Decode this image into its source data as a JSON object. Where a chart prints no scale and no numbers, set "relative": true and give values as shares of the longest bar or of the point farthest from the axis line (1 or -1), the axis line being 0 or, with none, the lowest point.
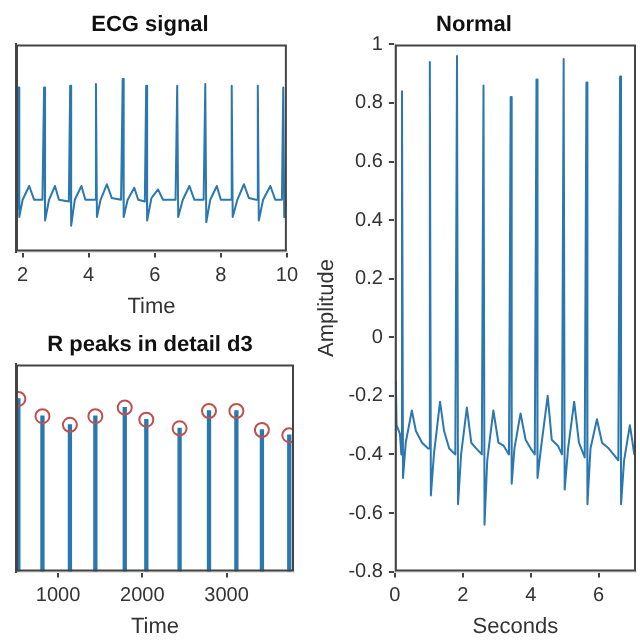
{
  "chart_data": [
    {
      "type": "line",
      "title": "ECG signal",
      "xlabel": "Time",
      "relative": true,
      "tick_labels": "x",
      "xlim": [
        1.8,
        10
      ],
      "xticks": [
        2,
        4,
        6,
        8,
        10
      ],
      "series": [
        {
          "color": "#2b78b0",
          "x": [
            1.8,
            1.86,
            1.88,
            1.9,
            2.0,
            2.2,
            2.35,
            2.6,
            2.65,
            2.68,
            2.8,
            2.98,
            3.1,
            3.4,
            3.44,
            3.47,
            3.58,
            3.78,
            3.9,
            4.18,
            4.22,
            4.25,
            4.36,
            4.55,
            4.7,
            4.98,
            5.03,
            5.06,
            5.18,
            5.38,
            5.5,
            5.7,
            5.74,
            5.77,
            5.9,
            6.1,
            6.25,
            6.63,
            6.68,
            6.71,
            6.85,
            7.05,
            7.2,
            7.48,
            7.53,
            7.56,
            7.68,
            7.88,
            8.0,
            8.28,
            8.33,
            8.36,
            8.5,
            8.7,
            8.85,
            9.08,
            9.12,
            9.15,
            9.28,
            9.5,
            9.65,
            9.85,
            9.89,
            9.92,
            10
          ],
          "values": [
            0.3,
            0.25,
            0.95,
            0.2,
            0.3,
            0.38,
            0.3,
            0.3,
            0.95,
            0.18,
            0.3,
            0.38,
            0.3,
            0.29,
            0.96,
            0.15,
            0.3,
            0.38,
            0.3,
            0.3,
            0.97,
            0.2,
            0.3,
            0.39,
            0.31,
            0.3,
            1,
            0.2,
            0.3,
            0.37,
            0.3,
            0.29,
            0.96,
            0.18,
            0.31,
            0.36,
            0.3,
            0.3,
            0.96,
            0.2,
            0.3,
            0.38,
            0.3,
            0.3,
            0.97,
            0.17,
            0.3,
            0.38,
            0.3,
            0.3,
            0.96,
            0.2,
            0.3,
            0.39,
            0.31,
            0.3,
            0.96,
            0.18,
            0.3,
            0.38,
            0.3,
            0.3,
            0.95,
            0.2,
            0.3
          ]
        }
      ]
    },
    {
      "type": "bar",
      "title": "R peaks in detail d3",
      "xlabel": "Time",
      "relative": true,
      "tick_labels": "x",
      "xlim": [
        500,
        3800
      ],
      "xticks": [
        1000,
        2000,
        3000
      ],
      "marker": "circle",
      "series": [
        {
          "color": "#2b78b0",
          "x": [
            528,
            814,
            1140,
            1442,
            1791,
            2047,
            2442,
            2791,
            3116,
            3419,
            3744
          ],
          "values": [
            1,
            0.9,
            0.85,
            0.9,
            0.95,
            0.88,
            0.83,
            0.93,
            0.93,
            0.82,
            0.79
          ]
        },
        {
          "type": "scatter",
          "color": "#c0504d",
          "x": [
            528,
            814,
            1140,
            1442,
            1791,
            2047,
            2442,
            2791,
            3116,
            3419,
            3744
          ],
          "values": [
            1,
            0.9,
            0.85,
            0.9,
            0.95,
            0.88,
            0.83,
            0.93,
            0.93,
            0.82,
            0.79
          ]
        }
      ]
    },
    {
      "type": "line",
      "title": "Normal",
      "xlabel": "Seconds",
      "ylabel": "Amplitude",
      "xlim": [
        0,
        7.1
      ],
      "xticks": [
        0,
        2,
        4,
        6
      ],
      "ylim": [
        -0.8,
        1
      ],
      "yticks": [
        -0.8,
        -0.6,
        -0.4,
        -0.2,
        0,
        0.2,
        0.4,
        0.6,
        0.8,
        1
      ],
      "series": [
        {
          "color": "#2b78b0",
          "x": [
            0.03,
            0.05,
            0.15,
            0.19,
            0.21,
            0.24,
            0.32,
            0.5,
            0.62,
            0.8,
            0.98,
            1.03,
            1.06,
            1.15,
            1.33,
            1.45,
            1.6,
            1.78,
            1.83,
            1.86,
            1.95,
            2.12,
            2.25,
            2.4,
            2.56,
            2.61,
            2.64,
            2.72,
            2.9,
            3.05,
            3.2,
            3.36,
            3.41,
            3.44,
            3.52,
            3.7,
            3.85,
            4.0,
            4.12,
            4.17,
            4.2,
            4.3,
            4.5,
            4.62,
            4.8,
            4.92,
            4.97,
            5.0,
            5.1,
            5.28,
            5.42,
            5.59,
            5.64,
            5.67,
            5.76,
            5.95,
            6.1,
            6.3,
            6.58,
            6.63,
            6.66,
            6.75,
            6.92,
            7.05,
            7.1
          ],
          "values": [
            -0.15,
            -0.3,
            -0.33,
            -0.4,
            0.84,
            -0.48,
            -0.36,
            -0.25,
            -0.32,
            -0.36,
            -0.38,
            0.94,
            -0.54,
            -0.4,
            -0.22,
            -0.32,
            -0.38,
            -0.4,
            0.96,
            -0.57,
            -0.4,
            -0.24,
            -0.36,
            -0.38,
            -0.4,
            0.86,
            -0.64,
            -0.42,
            -0.25,
            -0.36,
            -0.37,
            -0.4,
            0.82,
            -0.5,
            -0.38,
            -0.26,
            -0.35,
            -0.38,
            -0.4,
            0.88,
            -0.48,
            -0.38,
            -0.2,
            -0.35,
            -0.37,
            -0.4,
            0.95,
            -0.52,
            -0.38,
            -0.22,
            -0.36,
            -0.41,
            0.87,
            -0.57,
            -0.38,
            -0.28,
            -0.36,
            -0.38,
            -0.42,
            0.89,
            -0.57,
            -0.42,
            -0.3,
            -0.4,
            -0.36
          ]
        }
      ]
    }
  ]
}
